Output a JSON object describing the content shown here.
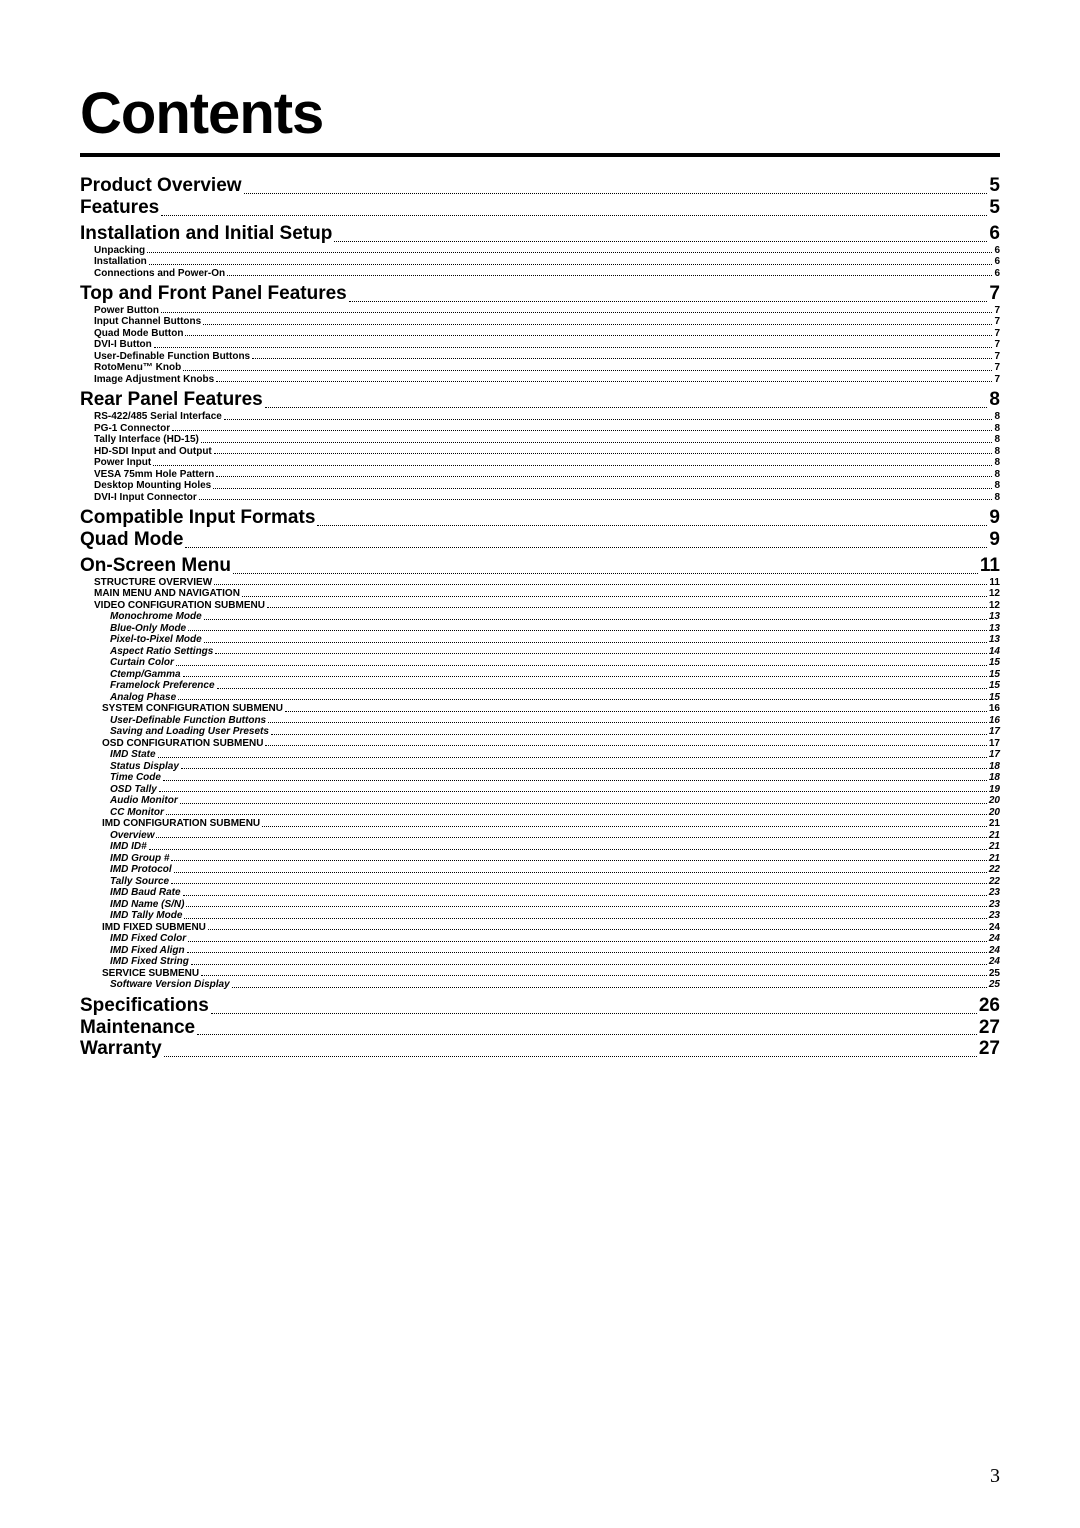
{
  "title": "Contents",
  "page_number": "3",
  "toc": [
    {
      "level": "1",
      "label": "Product Overview",
      "page": "5"
    },
    {
      "level": "1",
      "label": "Features",
      "page": "5"
    },
    {
      "level": "1b",
      "label": "Installation and Initial Setup",
      "page": "6"
    },
    {
      "level": "2",
      "label": "Unpacking",
      "page": "6"
    },
    {
      "level": "2",
      "label": "Installation",
      "page": "6"
    },
    {
      "level": "2",
      "label": "Connections and Power-On",
      "page": "6"
    },
    {
      "level": "1b",
      "label": "Top and Front Panel Features",
      "page": "7"
    },
    {
      "level": "2",
      "label": "Power Button",
      "page": "7"
    },
    {
      "level": "2",
      "label": "Input Channel Buttons",
      "page": "7"
    },
    {
      "level": "2",
      "label": "Quad Mode Button",
      "page": "7"
    },
    {
      "level": "2",
      "label": "DVI-I Button",
      "page": "7"
    },
    {
      "level": "2",
      "label": "User-Definable Function Buttons",
      "page": "7"
    },
    {
      "level": "2",
      "label": "RotoMenu™ Knob",
      "page": "7"
    },
    {
      "level": "2",
      "label": "Image Adjustment Knobs",
      "page": "7"
    },
    {
      "level": "1b",
      "label": "Rear Panel Features",
      "page": "8"
    },
    {
      "level": "2",
      "label": "RS-422/485 Serial Interface",
      "page": "8"
    },
    {
      "level": "2",
      "label": "PG-1 Connector",
      "page": "8"
    },
    {
      "level": "2",
      "label": "Tally Interface (HD-15)",
      "page": "8"
    },
    {
      "level": "2",
      "label": "HD-SDI Input and Output",
      "page": "8"
    },
    {
      "level": "2",
      "label": "Power Input",
      "page": "8"
    },
    {
      "level": "2",
      "label": "VESA 75mm Hole Pattern",
      "page": "8"
    },
    {
      "level": "2",
      "label": "Desktop Mounting Holes",
      "page": "8"
    },
    {
      "level": "2",
      "label": "DVI-I Input Connector",
      "page": "8"
    },
    {
      "level": "1b",
      "label": "Compatible Input Formats",
      "page": "9"
    },
    {
      "level": "1",
      "label": "Quad Mode",
      "page": "9"
    },
    {
      "level": "1b",
      "label": "On-Screen Menu",
      "page": "11"
    },
    {
      "level": "2",
      "label": "STRUCTURE OVERVIEW",
      "page": "11"
    },
    {
      "level": "2",
      "label": "MAIN MENU AND NAVIGATION",
      "page": "12"
    },
    {
      "level": "2",
      "label": "VIDEO CONFIGURATION SUBMENU",
      "page": "12"
    },
    {
      "level": "4",
      "label": "Monochrome Mode",
      "page": "13"
    },
    {
      "level": "4",
      "label": "Blue-Only Mode",
      "page": "13"
    },
    {
      "level": "4",
      "label": "Pixel-to-Pixel Mode",
      "page": "13"
    },
    {
      "level": "4",
      "label": "Aspect Ratio Settings",
      "page": "14"
    },
    {
      "level": "4",
      "label": "Curtain Color",
      "page": "15"
    },
    {
      "level": "4",
      "label": "Ctemp/Gamma",
      "page": "15"
    },
    {
      "level": "4",
      "label": "Framelock Preference",
      "page": "15"
    },
    {
      "level": "4",
      "label": "Analog Phase",
      "page": "15"
    },
    {
      "level": "3",
      "label": "SYSTEM CONFIGURATION SUBMENU",
      "page": "16"
    },
    {
      "level": "4",
      "label": "User-Definable Function Buttons",
      "page": "16"
    },
    {
      "level": "4",
      "label": "Saving and Loading User Presets",
      "page": "17"
    },
    {
      "level": "3",
      "label": "OSD CONFIGURATION SUBMENU",
      "page": "17"
    },
    {
      "level": "4",
      "label": "IMD State",
      "page": "17"
    },
    {
      "level": "4",
      "label": "Status Display",
      "page": "18"
    },
    {
      "level": "4",
      "label": "Time Code",
      "page": "18"
    },
    {
      "level": "4",
      "label": "OSD Tally",
      "page": "19"
    },
    {
      "level": "4",
      "label": "Audio Monitor",
      "page": "20"
    },
    {
      "level": "4",
      "label": "CC Monitor",
      "page": "20"
    },
    {
      "level": "3",
      "label": "IMD CONFIGURATION SUBMENU",
      "page": "21"
    },
    {
      "level": "4",
      "label": "Overview",
      "page": "21"
    },
    {
      "level": "4",
      "label": "IMD ID#",
      "page": "21"
    },
    {
      "level": "4",
      "label": "IMD Group #",
      "page": "21"
    },
    {
      "level": "4",
      "label": "IMD Protocol",
      "page": "22"
    },
    {
      "level": "4",
      "label": "Tally Source",
      "page": "22"
    },
    {
      "level": "4",
      "label": "IMD Baud Rate",
      "page": "23"
    },
    {
      "level": "4",
      "label": "IMD Name (S/N)",
      "page": "23"
    },
    {
      "level": "4",
      "label": "IMD Tally Mode",
      "page": "23"
    },
    {
      "level": "3",
      "label": "IMD FIXED SUBMENU",
      "page": "24"
    },
    {
      "level": "4",
      "label": "IMD Fixed Color",
      "page": "24"
    },
    {
      "level": "4",
      "label": "IMD Fixed Align",
      "page": "24"
    },
    {
      "level": "4",
      "label": "IMD Fixed String",
      "page": "24"
    },
    {
      "level": "3",
      "label": "SERVICE SUBMENU",
      "page": "25"
    },
    {
      "level": "4",
      "label": "Software Version Display",
      "page": "25"
    },
    {
      "level": "1b",
      "label": "Specifications",
      "page": "26"
    },
    {
      "level": "1",
      "label": "Maintenance",
      "page": "27"
    },
    {
      "level": "1",
      "label": "Warranty",
      "page": "27"
    }
  ]
}
